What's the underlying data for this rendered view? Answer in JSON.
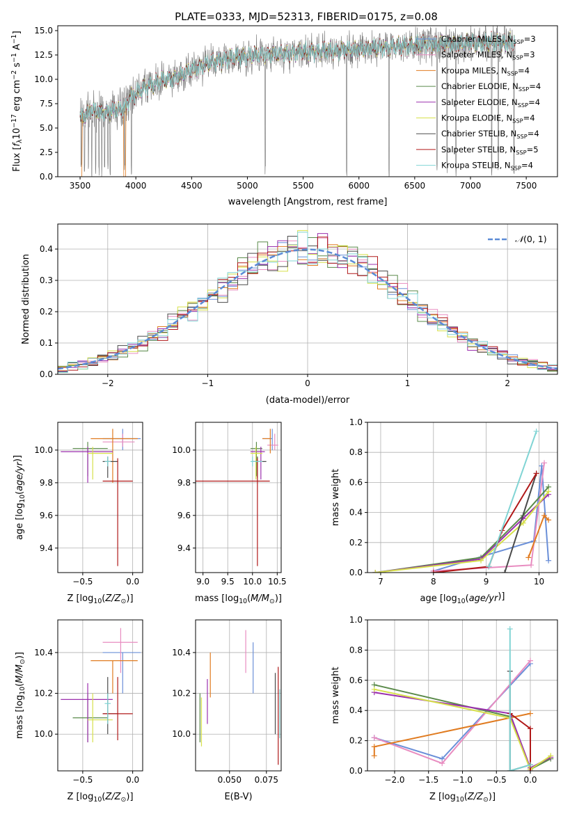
{
  "figure_title": "PLATE=0333, MJD=52313, FIBERID=0175, z=0.08",
  "colors": {
    "Chabrier MILES": "#6a8fd8",
    "Salpeter MILES": "#e88cc0",
    "Kroupa MILES": "#e07b20",
    "Chabrier ELODIE": "#5a8a4a",
    "Salpeter ELODIE": "#9b2fae",
    "Kroupa ELODIE": "#d6e04a",
    "Chabrier STELIB": "#4a4a4a",
    "Salpeter STELIB": "#b01818",
    "Kroupa STELIB": "#80d4d4",
    "data": "#808080",
    "normal": "#5b8bd6"
  },
  "chart_data": [
    {
      "id": "spectrum",
      "type": "line",
      "title": "PLATE=0333, MJD=52313, FIBERID=0175, z=0.08",
      "xlabel": "wavelength [Angstrom, rest frame]",
      "ylabel": "Flux [f_λ 10^-17 erg cm^-2 s^-1 A^-1]",
      "xlim": [
        3300,
        7780
      ],
      "ylim": [
        0,
        15.5
      ],
      "xticks": [
        3500,
        4000,
        4500,
        5000,
        5500,
        6000,
        6500,
        7000,
        7500
      ],
      "yticks": [
        0.0,
        2.5,
        5.0,
        7.5,
        10.0,
        12.5,
        15.0
      ],
      "legend": [
        {
          "base": "Chabrier MILES, N",
          "sub": "SSP",
          "suffix": "=3"
        },
        {
          "base": "Salpeter MILES, N",
          "sub": "SSP",
          "suffix": "=3"
        },
        {
          "base": "Kroupa MILES, N",
          "sub": "SSP",
          "suffix": "=4"
        },
        {
          "base": "Chabrier ELODIE, N",
          "sub": "SSP",
          "suffix": "=4"
        },
        {
          "base": "Salpeter ELODIE, N",
          "sub": "SSP",
          "suffix": "=4"
        },
        {
          "base": "Kroupa ELODIE, N",
          "sub": "SSP",
          "suffix": "=4"
        },
        {
          "base": "Chabrier STELIB, N",
          "sub": "SSP",
          "suffix": "=4"
        },
        {
          "base": "Salpeter STELIB, N",
          "sub": "SSP",
          "suffix": "=5"
        },
        {
          "base": "Kroupa STELIB, N",
          "sub": "SSP",
          "suffix": "=4"
        }
      ],
      "legend_placement": "lower-right",
      "continuum_knots": [
        [
          3500,
          6.0
        ],
        [
          3600,
          6.8
        ],
        [
          3700,
          6.6
        ],
        [
          3800,
          6.8
        ],
        [
          3900,
          7.0
        ],
        [
          3950,
          8.2
        ],
        [
          4000,
          8.5
        ],
        [
          4100,
          9.3
        ],
        [
          4200,
          9.8
        ],
        [
          4300,
          10.0
        ],
        [
          4400,
          10.4
        ],
        [
          4500,
          11.0
        ],
        [
          4700,
          11.8
        ],
        [
          4900,
          12.3
        ],
        [
          5100,
          12.5
        ],
        [
          5300,
          12.6
        ],
        [
          5500,
          12.8
        ],
        [
          5700,
          12.9
        ],
        [
          6000,
          13.1
        ],
        [
          6300,
          13.3
        ],
        [
          6600,
          13.6
        ],
        [
          7000,
          13.7
        ],
        [
          7400,
          13.8
        ]
      ],
      "data_range": [
        3500,
        7400
      ],
      "dips": [
        3510,
        3540,
        3575,
        3605,
        3640,
        3670,
        3695,
        3720,
        3750,
        3770,
        3900,
        3960,
        5160,
        5890,
        6270,
        6700,
        6790,
        6870,
        7190,
        7250,
        7390,
        7420
      ]
    },
    {
      "id": "residuals",
      "type": "histogram",
      "xlabel": "(data-model)/error",
      "ylabel": "Normed distribution",
      "xlim": [
        -2.5,
        2.5
      ],
      "ylim": [
        0,
        0.48
      ],
      "xticks": [
        -2,
        -1,
        0,
        1,
        2
      ],
      "yticks": [
        0.0,
        0.1,
        0.2,
        0.3,
        0.4
      ],
      "grid": true,
      "legend": {
        "label": "N(0,1)",
        "placement": "top-right"
      },
      "bin_width": 0.1
    },
    {
      "id": "age_vs_Z",
      "type": "scatter",
      "xlabel": "Z [log10(Z/Z_sun)]",
      "ylabel": "age [log10(age/yr)]",
      "xlim": [
        -0.75,
        0.1
      ],
      "ylim": [
        9.25,
        10.17
      ],
      "xticks": [
        -0.5,
        0.0
      ],
      "yticks": [
        9.4,
        9.6,
        9.8,
        10.0
      ],
      "grid": true,
      "points": [
        {
          "model": "Chabrier MILES",
          "x": -0.1,
          "x_lo": -0.3,
          "x_hi": 0.08,
          "y": 10.07,
          "y_lo": 10.0,
          "y_hi": 10.13
        },
        {
          "model": "Salpeter MILES",
          "x": -0.1,
          "x_lo": -0.3,
          "x_hi": 0.02,
          "y": 10.05,
          "y_lo": 10.02,
          "y_hi": 10.1
        },
        {
          "model": "Kroupa MILES",
          "x": -0.2,
          "x_lo": -0.42,
          "x_hi": 0.05,
          "y": 10.07,
          "y_lo": 9.8,
          "y_hi": 10.13
        },
        {
          "model": "Chabrier ELODIE",
          "x": -0.45,
          "x_lo": -0.6,
          "x_hi": -0.25,
          "y": 10.01,
          "y_lo": 9.84,
          "y_hi": 10.05
        },
        {
          "model": "Salpeter ELODIE",
          "x": -0.45,
          "x_lo": -0.72,
          "x_hi": -0.2,
          "y": 9.99,
          "y_lo": 9.8,
          "y_hi": 10.02
        },
        {
          "model": "Kroupa ELODIE",
          "x": -0.4,
          "x_lo": -0.45,
          "x_hi": -0.2,
          "y": 9.98,
          "y_lo": 9.82,
          "y_hi": 10.02
        },
        {
          "model": "Chabrier STELIB",
          "x": -0.25,
          "x_lo": -0.3,
          "x_hi": -0.15,
          "y": 9.93,
          "y_lo": 9.83,
          "y_hi": 9.96
        },
        {
          "model": "Salpeter STELIB",
          "x": -0.15,
          "x_lo": -0.3,
          "x_hi": 0.0,
          "y": 9.81,
          "y_lo": 9.29,
          "y_hi": 9.95
        },
        {
          "model": "Kroupa STELIB",
          "x": -0.25,
          "x_lo": -0.28,
          "x_hi": -0.22,
          "y": 9.93,
          "y_lo": 9.9,
          "y_hi": 9.96
        }
      ]
    },
    {
      "id": "age_vs_mass",
      "type": "scatter",
      "xlabel": "mass [log10(M/M_sun)]",
      "xlim": [
        8.85,
        10.58
      ],
      "ylim": [
        9.25,
        10.17
      ],
      "xticks": [
        9.0,
        9.5,
        10.0,
        10.5
      ],
      "yticks": [
        9.4,
        9.6,
        9.8,
        10.0
      ],
      "grid": true,
      "points": [
        {
          "model": "Chabrier MILES",
          "x": 10.4,
          "x_lo": 10.2,
          "x_hi": 10.4,
          "y": 10.07,
          "y_lo": 10.0,
          "y_hi": 10.13
        },
        {
          "model": "Salpeter MILES",
          "x": 10.45,
          "x_lo": 10.3,
          "x_hi": 10.52,
          "y": 10.03,
          "y_lo": 10.0,
          "y_hi": 10.1
        },
        {
          "model": "Kroupa MILES",
          "x": 10.36,
          "x_lo": 10.2,
          "x_hi": 10.36,
          "y": 10.07,
          "y_lo": 9.98,
          "y_hi": 10.13
        },
        {
          "model": "Chabrier ELODIE",
          "x": 10.08,
          "x_lo": 9.96,
          "x_hi": 10.2,
          "y": 10.01,
          "y_lo": 9.84,
          "y_hi": 10.05
        },
        {
          "model": "Salpeter ELODIE",
          "x": 10.17,
          "x_lo": 9.96,
          "x_hi": 10.25,
          "y": 9.99,
          "y_lo": 9.82,
          "y_hi": 10.02
        },
        {
          "model": "Kroupa ELODIE",
          "x": 10.07,
          "x_lo": 9.96,
          "x_hi": 10.2,
          "y": 9.98,
          "y_lo": 9.82,
          "y_hi": 10.02
        },
        {
          "model": "Chabrier STELIB",
          "x": 10.1,
          "x_lo": 10.0,
          "x_hi": 10.28,
          "y": 9.93,
          "y_lo": 9.83,
          "y_hi": 9.96
        },
        {
          "model": "Salpeter STELIB",
          "x": 10.1,
          "x_lo": 8.85,
          "x_hi": 10.35,
          "y": 9.81,
          "y_lo": 9.29,
          "y_hi": 9.95
        },
        {
          "model": "Kroupa STELIB",
          "x": 10.0,
          "x_lo": 9.96,
          "x_hi": 10.2,
          "y": 9.93,
          "y_lo": 9.9,
          "y_hi": 9.96
        }
      ]
    },
    {
      "id": "massweight_vs_age",
      "type": "line",
      "xlabel": "age [log10(age/yr)]",
      "ylabel": "mass weight",
      "xlim": [
        6.75,
        10.35
      ],
      "ylim": [
        0,
        1.0
      ],
      "xticks": [
        7,
        8,
        9,
        10
      ],
      "yticks": [
        0.0,
        0.2,
        0.4,
        0.6,
        0.8,
        1.0
      ],
      "grid": true,
      "series": [
        {
          "model": "Chabrier MILES",
          "x": [
            8.0,
            9.9,
            10.05,
            10.18
          ],
          "y": [
            0.01,
            0.21,
            0.71,
            0.08
          ]
        },
        {
          "model": "Salpeter MILES",
          "x": [
            8.0,
            9.85,
            10.1
          ],
          "y": [
            0.01,
            0.05,
            0.73
          ]
        },
        {
          "model": "Kroupa MILES",
          "x": [
            9.8,
            10.1,
            10.18
          ],
          "y": [
            0.1,
            0.38,
            0.35
          ]
        },
        {
          "model": "Chabrier ELODIE",
          "x": [
            6.9,
            8.9,
            9.7,
            10.18
          ],
          "y": [
            0.0,
            0.1,
            0.38,
            0.57
          ]
        },
        {
          "model": "Salpeter ELODIE",
          "x": [
            6.9,
            8.9,
            9.7,
            10.18
          ],
          "y": [
            0.0,
            0.09,
            0.36,
            0.52
          ]
        },
        {
          "model": "Kroupa ELODIE",
          "x": [
            6.9,
            8.9,
            9.7,
            10.18
          ],
          "y": [
            0.0,
            0.08,
            0.33,
            0.54
          ]
        },
        {
          "model": "Chabrier STELIB",
          "x": [
            9.35,
            9.95
          ],
          "y": [
            0.0,
            0.66
          ]
        },
        {
          "model": "Salpeter STELIB",
          "x": [
            8.0,
            9.05,
            9.3,
            9.95
          ],
          "y": [
            0.0,
            0.04,
            0.28,
            0.66
          ]
        },
        {
          "model": "Kroupa STELIB",
          "x": [
            9.05,
            9.95
          ],
          "y": [
            0.04,
            0.94
          ]
        }
      ]
    },
    {
      "id": "mass_vs_Z",
      "type": "scatter",
      "xlabel": "Z [log10(Z/Z_sun)]",
      "ylabel": "mass [log10(M/M_sun)]",
      "xlim": [
        -0.75,
        0.1
      ],
      "ylim": [
        9.82,
        10.56
      ],
      "xticks": [
        -0.5,
        0.0
      ],
      "yticks": [
        10.0,
        10.2,
        10.4
      ],
      "grid": true,
      "points": [
        {
          "model": "Chabrier MILES",
          "x": -0.1,
          "x_lo": -0.3,
          "x_hi": 0.08,
          "y": 10.4,
          "y_lo": 10.2,
          "y_hi": 10.4
        },
        {
          "model": "Salpeter MILES",
          "x": -0.12,
          "x_lo": -0.3,
          "x_hi": 0.05,
          "y": 10.45,
          "y_lo": 10.3,
          "y_hi": 10.52
        },
        {
          "model": "Kroupa MILES",
          "x": -0.2,
          "x_lo": -0.42,
          "x_hi": 0.05,
          "y": 10.36,
          "y_lo": 10.2,
          "y_hi": 10.36
        },
        {
          "model": "Chabrier ELODIE",
          "x": -0.45,
          "x_lo": -0.6,
          "x_hi": -0.25,
          "y": 10.08,
          "y_lo": 9.96,
          "y_hi": 10.2
        },
        {
          "model": "Salpeter ELODIE",
          "x": -0.45,
          "x_lo": -0.72,
          "x_hi": -0.2,
          "y": 10.17,
          "y_lo": 9.96,
          "y_hi": 10.25
        },
        {
          "model": "Kroupa ELODIE",
          "x": -0.4,
          "x_lo": -0.45,
          "x_hi": -0.2,
          "y": 10.07,
          "y_lo": 9.96,
          "y_hi": 10.2
        },
        {
          "model": "Chabrier STELIB",
          "x": -0.25,
          "x_lo": -0.3,
          "x_hi": -0.15,
          "y": 10.1,
          "y_lo": 10.0,
          "y_hi": 10.28
        },
        {
          "model": "Salpeter STELIB",
          "x": -0.15,
          "x_lo": -0.3,
          "x_hi": 0.0,
          "y": 10.1,
          "y_lo": 9.97,
          "y_hi": 10.28
        },
        {
          "model": "Kroupa STELIB",
          "x": -0.25,
          "x_lo": -0.28,
          "x_hi": -0.22,
          "y": 10.15,
          "y_lo": 10.05,
          "y_hi": 10.2
        }
      ]
    },
    {
      "id": "mass_vs_ebv",
      "type": "scatter",
      "xlabel": "E(B-V)",
      "xlim": [
        0.027,
        0.085
      ],
      "ylim": [
        9.82,
        10.56
      ],
      "xticks": [
        0.05,
        0.075
      ],
      "xtick_labels": [
        "0.050",
        "0.075"
      ],
      "yticks": [
        10.0,
        10.2,
        10.4
      ],
      "grid": true,
      "points": [
        {
          "model": "Chabrier MILES",
          "x": 0.066,
          "y_lo": 10.2,
          "y_hi": 10.45
        },
        {
          "model": "Salpeter MILES",
          "x": 0.061,
          "y_lo": 10.3,
          "y_hi": 10.51
        },
        {
          "model": "Kroupa MILES",
          "x": 0.037,
          "y_lo": 10.18,
          "y_hi": 10.4
        },
        {
          "model": "Chabrier ELODIE",
          "x": 0.03,
          "y_lo": 9.96,
          "y_hi": 10.2
        },
        {
          "model": "Salpeter ELODIE",
          "x": 0.035,
          "y_lo": 10.05,
          "y_hi": 10.27
        },
        {
          "model": "Kroupa ELODIE",
          "x": 0.031,
          "y_lo": 9.94,
          "y_hi": 10.18
        },
        {
          "model": "Chabrier STELIB",
          "x": 0.081,
          "y_lo": 10.0,
          "y_hi": 10.3
        },
        {
          "model": "Salpeter STELIB",
          "x": 0.083,
          "y_lo": 9.85,
          "y_hi": 10.33
        },
        {
          "model": "Kroupa STELIB",
          "x": 0.084,
          "y_lo": 9.98,
          "y_hi": 10.22
        }
      ]
    },
    {
      "id": "massweight_vs_Z",
      "type": "line",
      "xlabel": "Z [log10(Z/Z_sun)]",
      "ylabel": "mass weight",
      "xlim": [
        -2.4,
        0.4
      ],
      "ylim": [
        0,
        1.0
      ],
      "xticks": [
        -2.0,
        -1.5,
        -1.0,
        -0.5,
        0.0
      ],
      "yticks": [
        0.0,
        0.2,
        0.4,
        0.6,
        0.8,
        1.0
      ],
      "grid": true,
      "series": [
        {
          "model": "Chabrier MILES",
          "x": [
            -2.3,
            -1.3,
            0.0
          ],
          "y": [
            0.22,
            0.08,
            0.71
          ]
        },
        {
          "model": "Salpeter MILES",
          "x": [
            -2.3,
            -1.3,
            0.0
          ],
          "y": [
            0.22,
            0.05,
            0.73
          ]
        },
        {
          "model": "Kroupa MILES",
          "x": [
            -2.3,
            -2.3,
            0.0
          ],
          "y": [
            0.1,
            0.16,
            0.38
          ]
        },
        {
          "model": "Chabrier ELODIE",
          "x": [
            -2.3,
            -0.3,
            0.0,
            0.3
          ],
          "y": [
            0.57,
            0.36,
            0.01,
            0.08
          ]
        },
        {
          "model": "Salpeter ELODIE",
          "x": [
            -2.3,
            -0.3,
            0.0,
            0.3
          ],
          "y": [
            0.52,
            0.38,
            0.02,
            0.09
          ]
        },
        {
          "model": "Kroupa ELODIE",
          "x": [
            -2.3,
            -0.3,
            0.0,
            0.3
          ],
          "y": [
            0.54,
            0.35,
            0.01,
            0.1
          ]
        },
        {
          "model": "Chabrier STELIB",
          "x": [
            -0.3,
            -0.3,
            0.0
          ],
          "y": [
            0.66,
            0.0,
            0.04
          ]
        },
        {
          "model": "Salpeter STELIB",
          "x": [
            -0.3,
            0.0,
            0.0
          ],
          "y": [
            0.38,
            0.28,
            0.0
          ]
        },
        {
          "model": "Kroupa STELIB",
          "x": [
            -0.3,
            -0.3,
            0.0
          ],
          "y": [
            0.94,
            0.0,
            0.04
          ]
        }
      ]
    }
  ]
}
